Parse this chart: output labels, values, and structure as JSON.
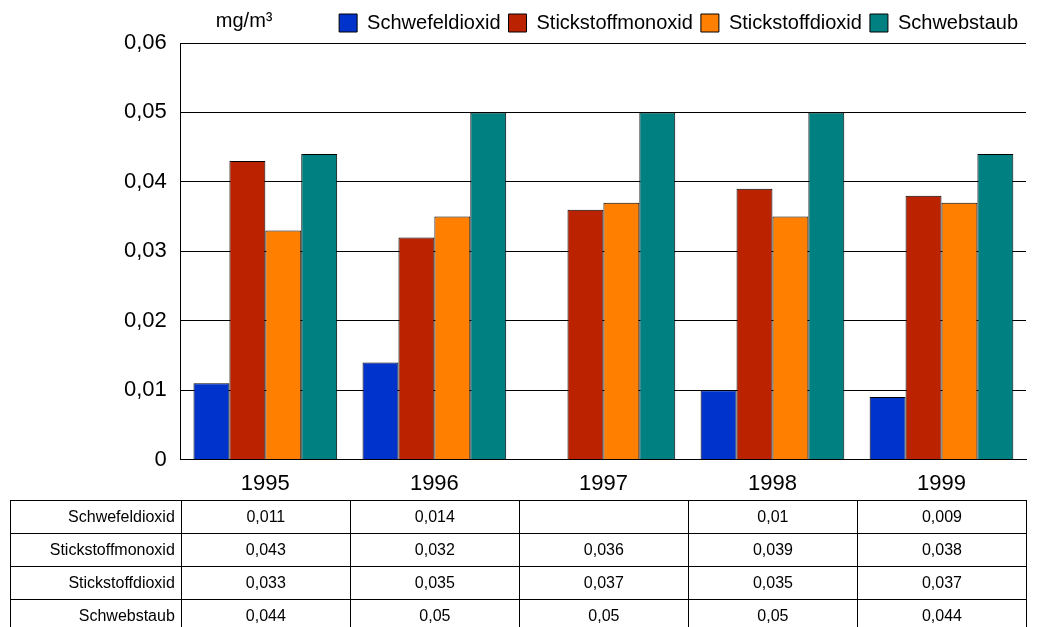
{
  "chart_data": {
    "type": "bar",
    "ylabel": "mg/m³",
    "categories": [
      "1995",
      "1996",
      "1997",
      "1998",
      "1999"
    ],
    "series": [
      {
        "name": "Schwefeldioxid",
        "color": "#0033cc",
        "values": [
          0.011,
          0.014,
          null,
          0.01,
          0.009
        ],
        "value_labels": [
          "0,011",
          "0,014",
          null,
          "0,01",
          "0,009"
        ]
      },
      {
        "name": "Stickstoffmonoxid",
        "color": "#bb2200",
        "values": [
          0.043,
          0.032,
          0.036,
          0.039,
          0.038
        ],
        "value_labels": [
          "0,043",
          "0,032",
          "0,036",
          "0,039",
          "0,038"
        ]
      },
      {
        "name": "Stickstoffdioxid",
        "color": "#ff8000",
        "values": [
          0.033,
          0.035,
          0.037,
          0.035,
          0.037
        ],
        "value_labels": [
          "0,033",
          "0,035",
          "0,037",
          "0,035",
          "0,037"
        ]
      },
      {
        "name": "Schwebstaub",
        "color": "#008080",
        "values": [
          0.044,
          0.05,
          0.05,
          0.05,
          0.044
        ],
        "value_labels": [
          "0,044",
          "0,05",
          "0,05",
          "0,05",
          "0,044"
        ]
      }
    ],
    "ylim": [
      0,
      0.06
    ],
    "yticks": [
      0,
      {
        "value": 0.01,
        "label": "0,01"
      },
      {
        "value": 0.02,
        "label": "0,02"
      },
      {
        "value": 0.03,
        "label": "0,03"
      },
      {
        "value": 0.04,
        "label": "0,04"
      },
      {
        "value": 0.05,
        "label": "0,05"
      },
      {
        "value": 0.06,
        "label": "0,06"
      }
    ],
    "grid": "y",
    "legend": "top right"
  }
}
